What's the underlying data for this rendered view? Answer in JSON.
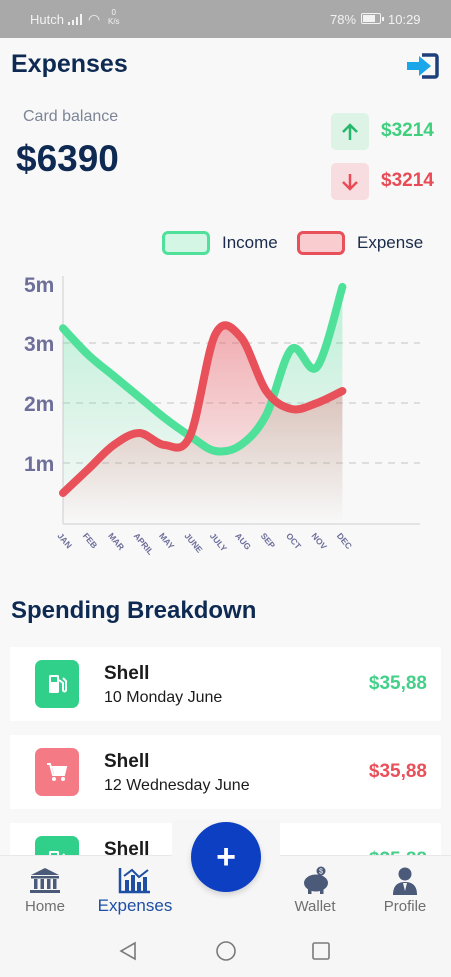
{
  "status_bar": {
    "carrier": "Hutch",
    "speed_value": "0",
    "speed_unit": "K/s",
    "battery": "78%",
    "time": "10:29"
  },
  "header": {
    "title": "Expenses",
    "logout_icon": "logout-icon"
  },
  "balance": {
    "label": "Card balance",
    "value": "$6390",
    "income": "$3214",
    "expense": "$3214"
  },
  "colors": {
    "income": "#4fe09a",
    "expense": "#e8505a",
    "primary": "#0c3fc1",
    "navy": "#0e2a52"
  },
  "chart_data": {
    "type": "line",
    "legend": [
      "Income",
      "Expense"
    ],
    "legend_position": "top-right",
    "categories": [
      "JAN",
      "FEB",
      "MAR",
      "APRIL",
      "MAY",
      "JUNE",
      "JULY",
      "AUG",
      "SEP",
      "OCT",
      "NOV",
      "DEC"
    ],
    "y_ticks": [
      "1m",
      "2m",
      "3m",
      "5m"
    ],
    "grid": true,
    "series": [
      {
        "name": "Income",
        "values": [
          3.5,
          2.8,
          2.45,
          2.1,
          1.75,
          1.45,
          1.2,
          1.3,
          1.8,
          2.9,
          2.6,
          4.9
        ]
      },
      {
        "name": "Expense",
        "values": [
          0.5,
          0.9,
          1.3,
          1.5,
          1.3,
          1.45,
          3.3,
          3.2,
          2.2,
          1.9,
          2.0,
          2.2
        ]
      }
    ]
  },
  "spending": {
    "title": "Spending Breakdown",
    "items": [
      {
        "name": "Shell",
        "date": "10 Monday June",
        "amount": "$35,88",
        "icon": "fuel-pump-icon"
      },
      {
        "name": "Shell",
        "date": "12 Wednesday June",
        "amount": "$35,88",
        "icon": "shopping-cart-icon"
      },
      {
        "name": "Shell",
        "date": "",
        "amount": "$35,88",
        "icon": "fuel-pump-icon"
      }
    ]
  },
  "nav": {
    "home": "Home",
    "expenses": "Expenses",
    "wallet": "Wallet",
    "profile": "Profile",
    "fab": "+"
  }
}
